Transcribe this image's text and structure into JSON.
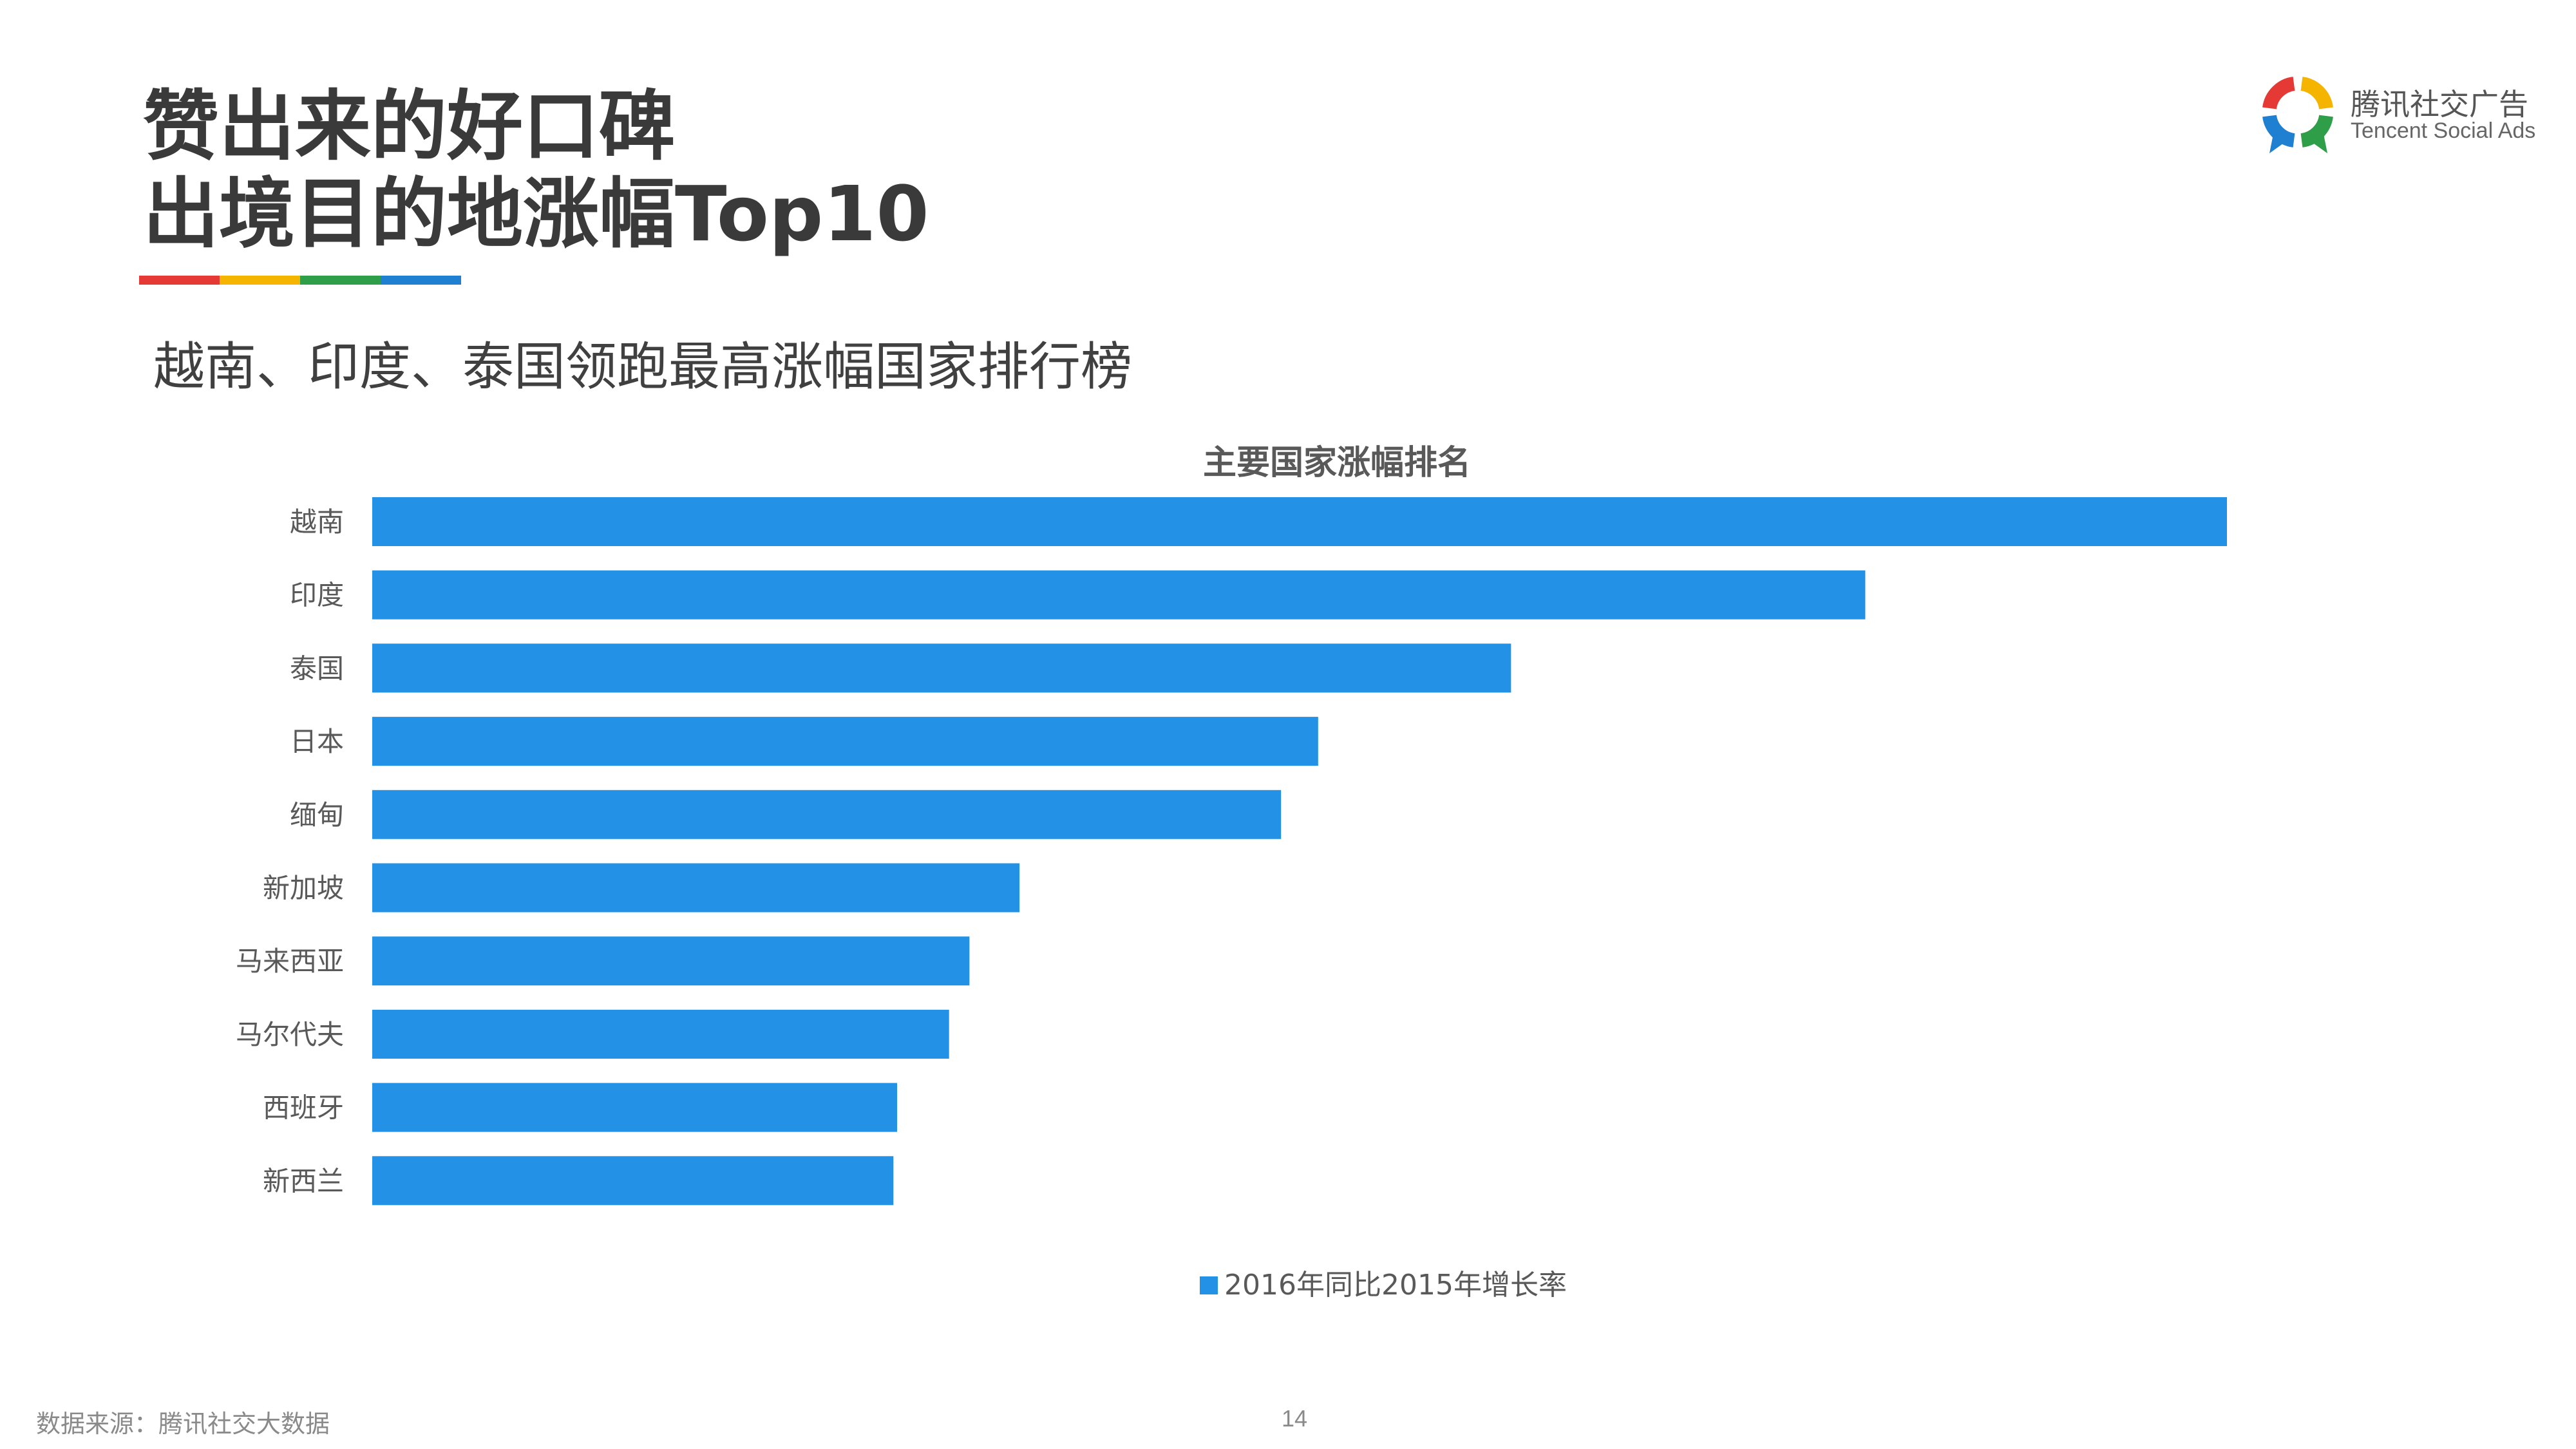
{
  "slide": {
    "title_line1": "赞出来的好口碑",
    "title_line2": "出境目的地涨幅Top10",
    "subtitle": "越南、印度、泰国领跑最高涨幅国家排行榜",
    "rule_colors": [
      "#e53935",
      "#f4b400",
      "#2e9e48",
      "#1f7fd0"
    ],
    "source": "数据来源：腾讯社交大数据",
    "page_number": "14"
  },
  "brand": {
    "name_cn": "腾讯社交广告",
    "name_en": "Tencent Social Ads",
    "colors": [
      "#e53935",
      "#f4b400",
      "#2e9e48",
      "#1f7fd0"
    ]
  },
  "chart_data": {
    "type": "bar",
    "orientation": "horizontal",
    "title": "主要国家涨幅排名",
    "categories": [
      "越南",
      "印度",
      "泰国",
      "日本",
      "缅甸",
      "新加坡",
      "马来西亚",
      "马尔代夫",
      "西班牙",
      "新西兰"
    ],
    "series": [
      {
        "name": "2016年同比2015年增长率",
        "color": "#2291e6",
        "values": [
          100,
          80.5,
          61.4,
          51,
          49,
          34.9,
          32.2,
          31.1,
          28.3,
          28.1
        ]
      }
    ],
    "xlabel": "",
    "ylabel": "",
    "xlim": [
      0,
      100
    ],
    "grid": false,
    "axis_values_shown": false,
    "legend_position": "bottom"
  }
}
